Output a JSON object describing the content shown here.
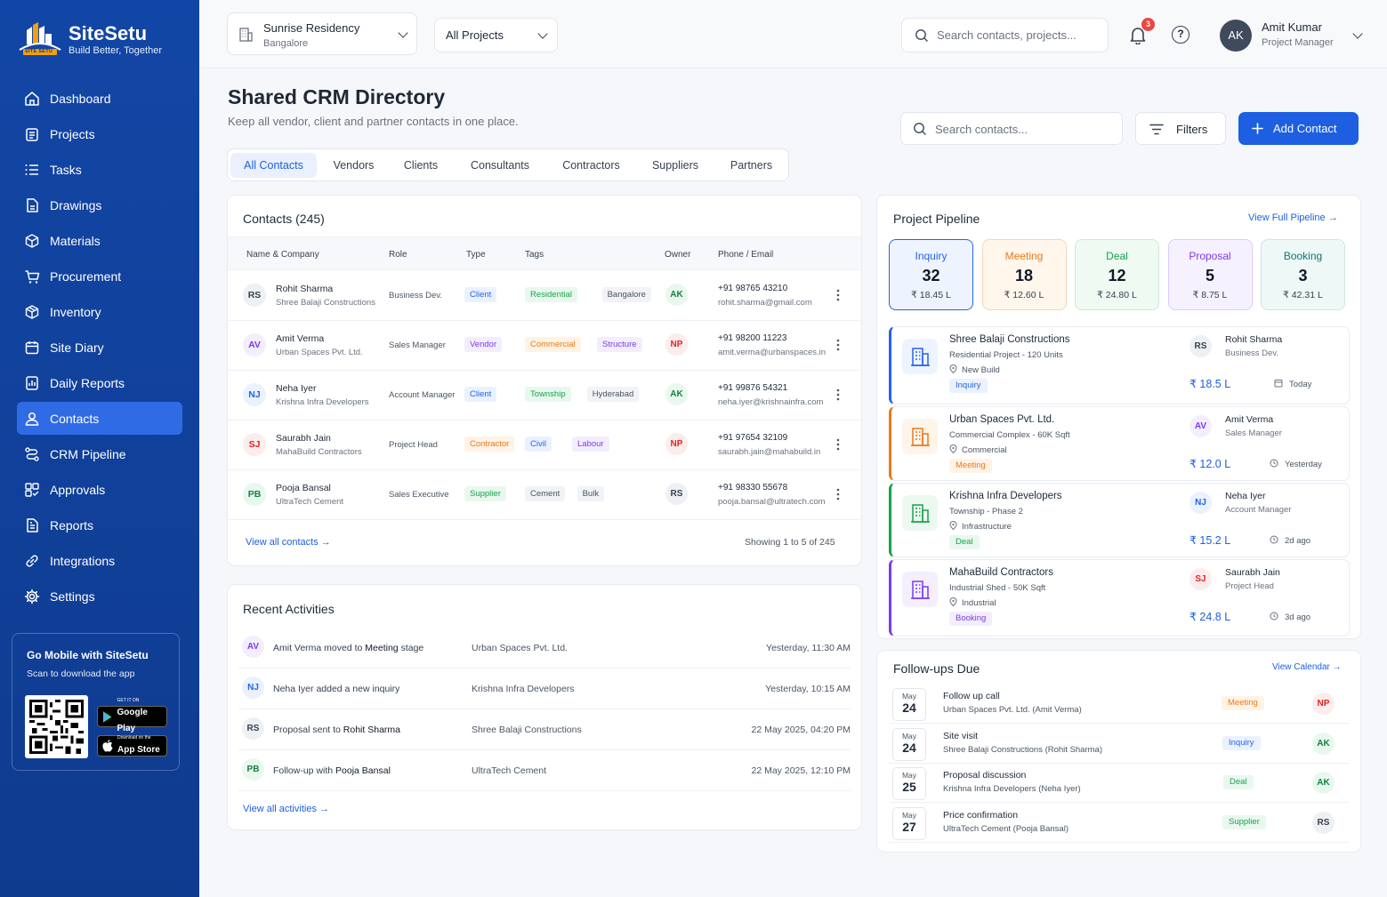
{
  "brand": {
    "name": "SiteSetu",
    "tagline": "Build Better, Together",
    "mark": "SITE SETU"
  },
  "nav": [
    {
      "label": "Dashboard",
      "icon": "home-icon"
    },
    {
      "label": "Projects",
      "icon": "clipboard-icon"
    },
    {
      "label": "Tasks",
      "icon": "list-icon"
    },
    {
      "label": "Drawings",
      "icon": "file-icon"
    },
    {
      "label": "Materials",
      "icon": "cube-icon"
    },
    {
      "label": "Procurement",
      "icon": "cart-icon"
    },
    {
      "label": "Inventory",
      "icon": "box-icon"
    },
    {
      "label": "Site Diary",
      "icon": "calendar-icon"
    },
    {
      "label": "Daily Reports",
      "icon": "report-icon"
    },
    {
      "label": "Contacts",
      "icon": "user-icon",
      "active": true
    },
    {
      "label": "CRM Pipeline",
      "icon": "pipeline-icon"
    },
    {
      "label": "Approvals",
      "icon": "grid-icon"
    },
    {
      "label": "Reports",
      "icon": "doc-icon"
    },
    {
      "label": "Integrations",
      "icon": "link-icon"
    },
    {
      "label": "Settings",
      "icon": "gear-icon"
    }
  ],
  "mobile": {
    "title": "Go Mobile with SiteSetu",
    "subtitle": "Scan to download the app",
    "google_small": "GET IT ON",
    "google": "Google Play",
    "apple_small": "Download on the",
    "apple": "App Store"
  },
  "top": {
    "project_name": "Sunrise Residency",
    "project_city": "Bangalore",
    "all_projects": "All Projects",
    "search_placeholder": "Search contacts, projects...",
    "notifications": "3",
    "user_initials": "AK",
    "user_name": "Amit Kumar",
    "user_role": "Project Manager"
  },
  "header": {
    "title": "Shared CRM Directory",
    "subtitle": "Keep all vendor, client and partner contacts in one place.",
    "search_placeholder": "Search contacts...",
    "filters": "Filters",
    "add_contact": "Add Contact"
  },
  "tabs": [
    "All Contacts",
    "Vendors",
    "Clients",
    "Consultants",
    "Contractors",
    "Suppliers",
    "Partners"
  ],
  "contacts": {
    "title": "Contacts (245)",
    "columns": [
      "Name & Company",
      "Role",
      "Type",
      "Tags",
      "Owner",
      "Phone / Email"
    ],
    "rows": [
      {
        "initials": "RS",
        "name": "Rohit Sharma",
        "company": "Shree Balaji Constructions",
        "role": "Business Dev.",
        "type": "Client",
        "tags": [
          "Residential",
          "Bangalore"
        ],
        "owner": "AK",
        "phone": "+91 98765 43210",
        "email": "rohit.sharma@gmail.com"
      },
      {
        "initials": "AV",
        "name": "Amit Verma",
        "company": "Urban Spaces Pvt. Ltd.",
        "role": "Sales Manager",
        "type": "Vendor",
        "tags": [
          "Commercial",
          "Structure"
        ],
        "owner": "NP",
        "phone": "+91 98200 11223",
        "email": "amit.verma@urbanspaces.in"
      },
      {
        "initials": "NJ",
        "name": "Neha Iyer",
        "company": "Krishna Infra Developers",
        "role": "Account Manager",
        "type": "Client",
        "tags": [
          "Township",
          "Hyderabad"
        ],
        "owner": "AK",
        "phone": "+91 99876 54321",
        "email": "neha.iyer@krishnainfra.com"
      },
      {
        "initials": "SJ",
        "name": "Saurabh Jain",
        "company": "MahaBuild Contractors",
        "role": "Project Head",
        "type": "Contractor",
        "tags": [
          "Civil",
          "Labour"
        ],
        "owner": "NP",
        "phone": "+91 97654 32109",
        "email": "saurabh.jain@mahabuild.in"
      },
      {
        "initials": "PB",
        "name": "Pooja Bansal",
        "company": "UltraTech Cement",
        "role": "Sales Executive",
        "type": "Supplier",
        "tags": [
          "Cement",
          "Bulk"
        ],
        "owner": "RS",
        "phone": "+91 98330 55678",
        "email": "pooja.bansal@ultratech.com"
      }
    ],
    "view_all": "View all contacts",
    "showing": "Showing 1 to 5 of 245"
  },
  "activities": {
    "title": "Recent Activities",
    "rows": [
      {
        "initials": "AV",
        "pre": "Amit Verma moved to ",
        "bold": "Meeting",
        "post": " stage",
        "company": "Urban Spaces Pvt. Ltd.",
        "time": "Yesterday, 11:30 AM"
      },
      {
        "initials": "NJ",
        "pre": "Neha Iyer added a new inquiry",
        "bold": "",
        "post": "",
        "company": "Krishna Infra Developers",
        "time": "Yesterday, 10:15 AM"
      },
      {
        "initials": "RS",
        "pre": "Proposal sent to ",
        "bold": "Rohit Sharma",
        "post": "",
        "company": "Shree Balaji Constructions",
        "time": "22 May 2025, 04:20 PM"
      },
      {
        "initials": "PB",
        "pre": "Follow-up with ",
        "bold": "Pooja Bansal",
        "post": "",
        "company": "UltraTech Cement",
        "time": "22 May 2025, 12:10 PM"
      }
    ],
    "view_all": "View all activities"
  },
  "pipeline": {
    "title": "Project Pipeline",
    "view_full": "View Full Pipeline",
    "stages": [
      {
        "name": "Inquiry",
        "count": "32",
        "amount": "₹ 18.45 L"
      },
      {
        "name": "Meeting",
        "count": "18",
        "amount": "₹ 12.60 L"
      },
      {
        "name": "Deal",
        "count": "12",
        "amount": "₹ 24.80 L"
      },
      {
        "name": "Proposal",
        "count": "5",
        "amount": "₹ 8.75 L"
      },
      {
        "name": "Booking",
        "count": "3",
        "amount": "₹ 42.31 L"
      }
    ],
    "deals": [
      {
        "name": "Shree Balaji Constructions",
        "sub": "Residential Project - 120 Units",
        "tag": "New Build",
        "stage": "Inquiry",
        "initials": "RS",
        "person": "Rohit Sharma",
        "prole": "Business Dev.",
        "amount": "₹ 18.5 L",
        "time": "Today"
      },
      {
        "name": "Urban Spaces Pvt. Ltd.",
        "sub": "Commercial Complex - 60K Sqft",
        "tag": "Commercial",
        "stage": "Meeting",
        "initials": "AV",
        "person": "Amit Verma",
        "prole": "Sales Manager",
        "amount": "₹ 12.0 L",
        "time": "Yesterday"
      },
      {
        "name": "Krishna Infra Developers",
        "sub": "Township - Phase 2",
        "tag": "Infrastructure",
        "stage": "Deal",
        "initials": "NJ",
        "person": "Neha Iyer",
        "prole": "Account Manager",
        "amount": "₹ 15.2 L",
        "time": "2d ago"
      },
      {
        "name": "MahaBuild Contractors",
        "sub": "Industrial Shed - 50K Sqft",
        "tag": "Industrial",
        "stage": "Booking",
        "initials": "SJ",
        "person": "Saurabh Jain",
        "prole": "Project Head",
        "amount": "₹ 24.8 L",
        "time": "3d ago"
      }
    ]
  },
  "followups": {
    "title": "Follow-ups Due",
    "view_calendar": "View Calendar",
    "rows": [
      {
        "month": "May",
        "day": "24",
        "title": "Follow up call",
        "sub": "Urban Spaces Pvt. Ltd. (Amit Verma)",
        "stage": "Meeting",
        "owner": "NP"
      },
      {
        "month": "May",
        "day": "24",
        "title": "Site visit",
        "sub": "Shree Balaji Constructions (Rohit Sharma)",
        "stage": "Inquiry",
        "owner": "AK"
      },
      {
        "month": "May",
        "day": "25",
        "title": "Proposal discussion",
        "sub": "Krishna Infra Developers (Neha Iyer)",
        "stage": "Deal",
        "owner": "AK"
      },
      {
        "month": "May",
        "day": "27",
        "title": "Price confirmation",
        "sub": "UltraTech Cement (Pooja Bansal)",
        "stage": "Supplier",
        "owner": "RS"
      }
    ]
  },
  "colors": {
    "primary": "#1d5fe0",
    "sidebar": "#1246a6",
    "inquiry": "#2563eb",
    "meeting": "#ea7a1a",
    "deal": "#16a34a",
    "proposal": "#7c3aed",
    "booking": "#0f766e"
  }
}
